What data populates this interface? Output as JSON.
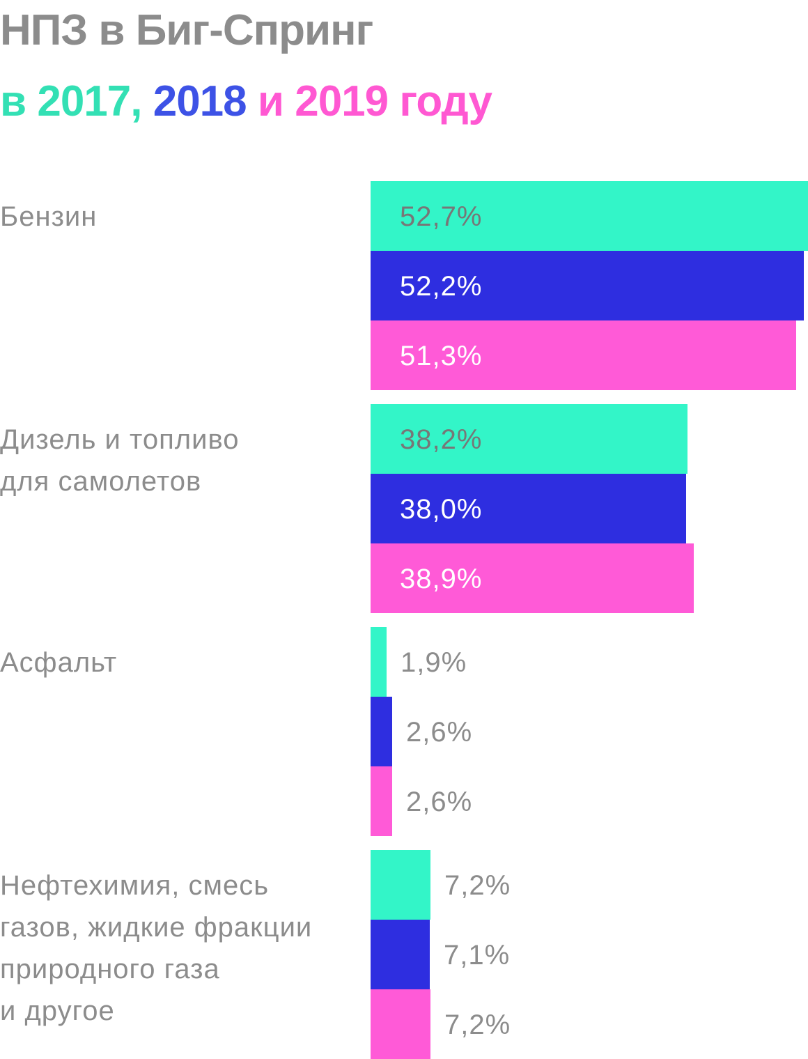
{
  "title": {
    "line1": "НПЗ в Биг-Спринг",
    "line2": [
      {
        "text": "в 2017, ",
        "color": "#33e0b4"
      },
      {
        "text": "2018 ",
        "color": "#3d52e6"
      },
      {
        "text": "и 2019 году",
        "color": "#ff58d2"
      }
    ]
  },
  "chart_data": {
    "type": "bar",
    "orientation": "horizontal",
    "categories": [
      [
        "Бензин"
      ],
      [
        "Дизель и топливо",
        "для самолетов"
      ],
      [
        "Асфальт"
      ],
      [
        "Нефтехимия, смесь",
        "газов, жидкие фракции",
        "природного газа",
        "и другое"
      ]
    ],
    "series": [
      {
        "name": "2017",
        "color": "#33f5c8",
        "values": [
          52.7,
          38.2,
          1.9,
          7.2
        ],
        "labels": [
          "52,7%",
          "38,2%",
          "1,9%",
          "7,2%"
        ],
        "label_color": "#777777"
      },
      {
        "name": "2018",
        "color": "#2e2ee0",
        "values": [
          52.2,
          38.0,
          2.6,
          7.1
        ],
        "labels": [
          "52,2%",
          "38,0%",
          "2,6%",
          "7,1%"
        ],
        "label_color": "#ffffff"
      },
      {
        "name": "2019",
        "color": "#ff5ad7",
        "values": [
          51.3,
          38.9,
          2.6,
          7.2
        ],
        "labels": [
          "51,3%",
          "38,9%",
          "2,6%",
          "7,2%"
        ],
        "label_color": "#ffffff"
      }
    ],
    "outside_label_color": "#8c8c8c",
    "xlim": [
      0,
      52.7
    ]
  }
}
